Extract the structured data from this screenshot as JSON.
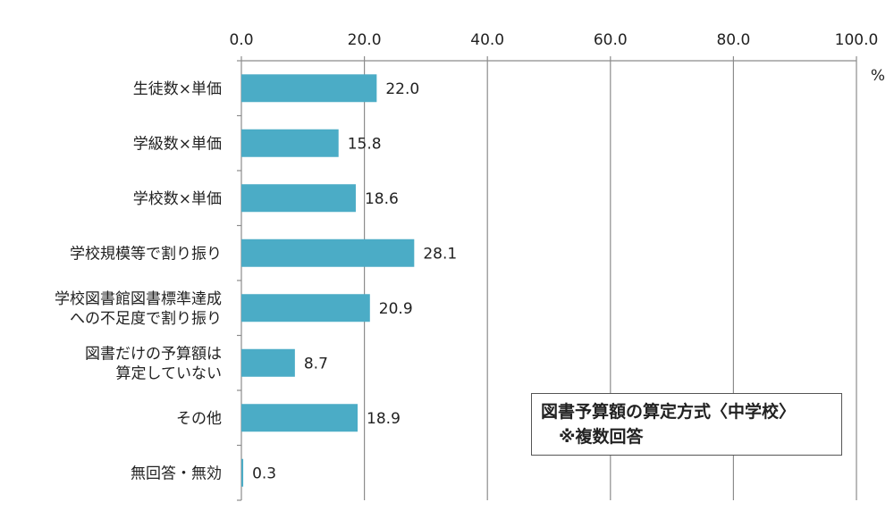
{
  "chart_data": {
    "type": "bar",
    "orientation": "horizontal",
    "categories": [
      [
        "生徒数×単価"
      ],
      [
        "学級数×単価"
      ],
      [
        "学校数×単価"
      ],
      [
        "学校規模等で割り振り"
      ],
      [
        "学校図書館図書標準達成",
        "への不足度で割り振り"
      ],
      [
        "図書だけの予算額は",
        "算定していない"
      ],
      [
        "その他"
      ],
      [
        "無回答・無効"
      ]
    ],
    "values": [
      22.0,
      15.8,
      18.6,
      28.1,
      20.9,
      8.7,
      18.9,
      0.3
    ],
    "xlim": [
      0,
      100
    ],
    "xticks": [
      "0.0",
      "20.0",
      "40.0",
      "60.0",
      "80.0",
      "100.0"
    ],
    "unit": "%",
    "grid": "vertical",
    "bar_color": "#4bacc6",
    "annotation": [
      "図書予算額の算定方式〈中学校〉",
      "※複数回答"
    ]
  }
}
